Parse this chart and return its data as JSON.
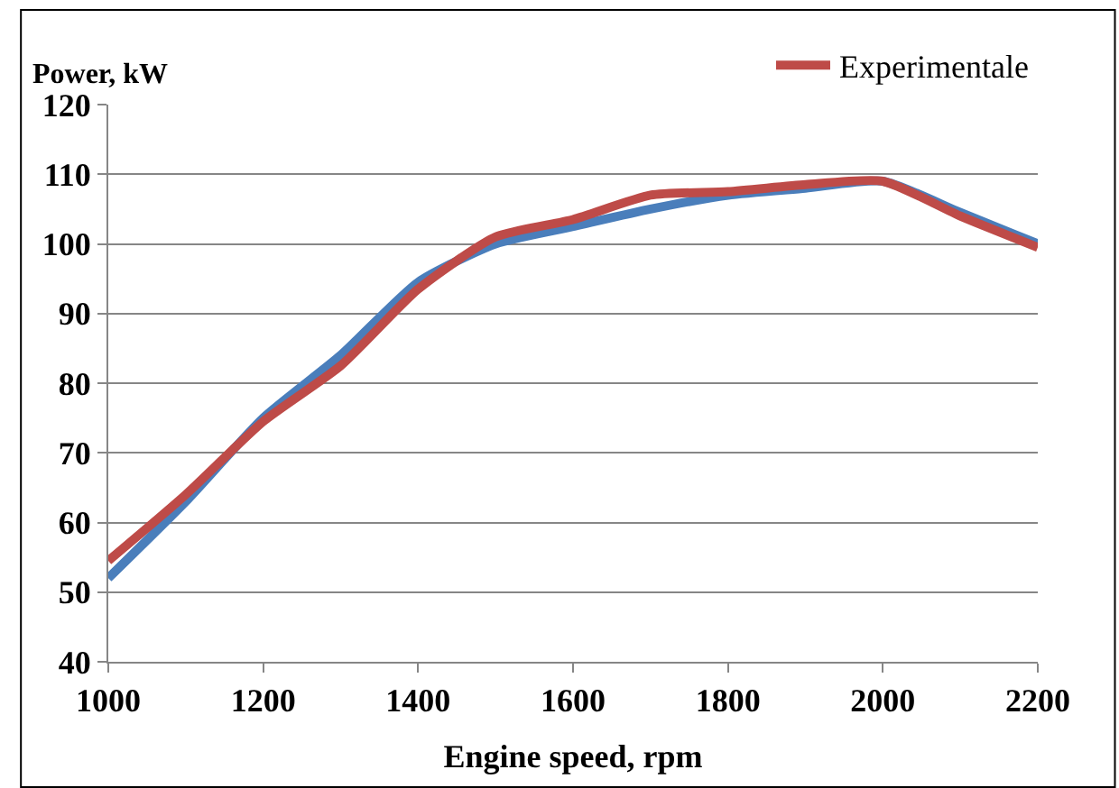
{
  "chart_data": {
    "type": "line",
    "xlabel": "Engine speed, rpm",
    "ylabel": "Power, kW",
    "x": [
      1000,
      1100,
      1200,
      1300,
      1400,
      1500,
      1600,
      1700,
      1800,
      1900,
      2000,
      2100,
      2200
    ],
    "series": [
      {
        "color": "#4a7ebb",
        "values": [
          52,
          63,
          75,
          84,
          94.5,
          100,
          102.5,
          105,
          107,
          108,
          109,
          104.5,
          100
        ]
      },
      {
        "name": "Experimentale",
        "color": "#be4b48",
        "values": [
          54.5,
          64,
          74.5,
          82.5,
          93.5,
          101,
          103.5,
          107,
          107.5,
          108.5,
          109,
          104,
          99.5
        ]
      }
    ],
    "xlim": [
      1000,
      2200
    ],
    "xticks": [
      1000,
      1200,
      1400,
      1600,
      1800,
      2000,
      2200
    ],
    "ylim": [
      40,
      120
    ],
    "yticks": [
      40,
      50,
      60,
      70,
      80,
      90,
      100,
      110,
      120
    ],
    "grid": "y",
    "legend": "top right",
    "marker": "none",
    "line_style": "solid"
  }
}
